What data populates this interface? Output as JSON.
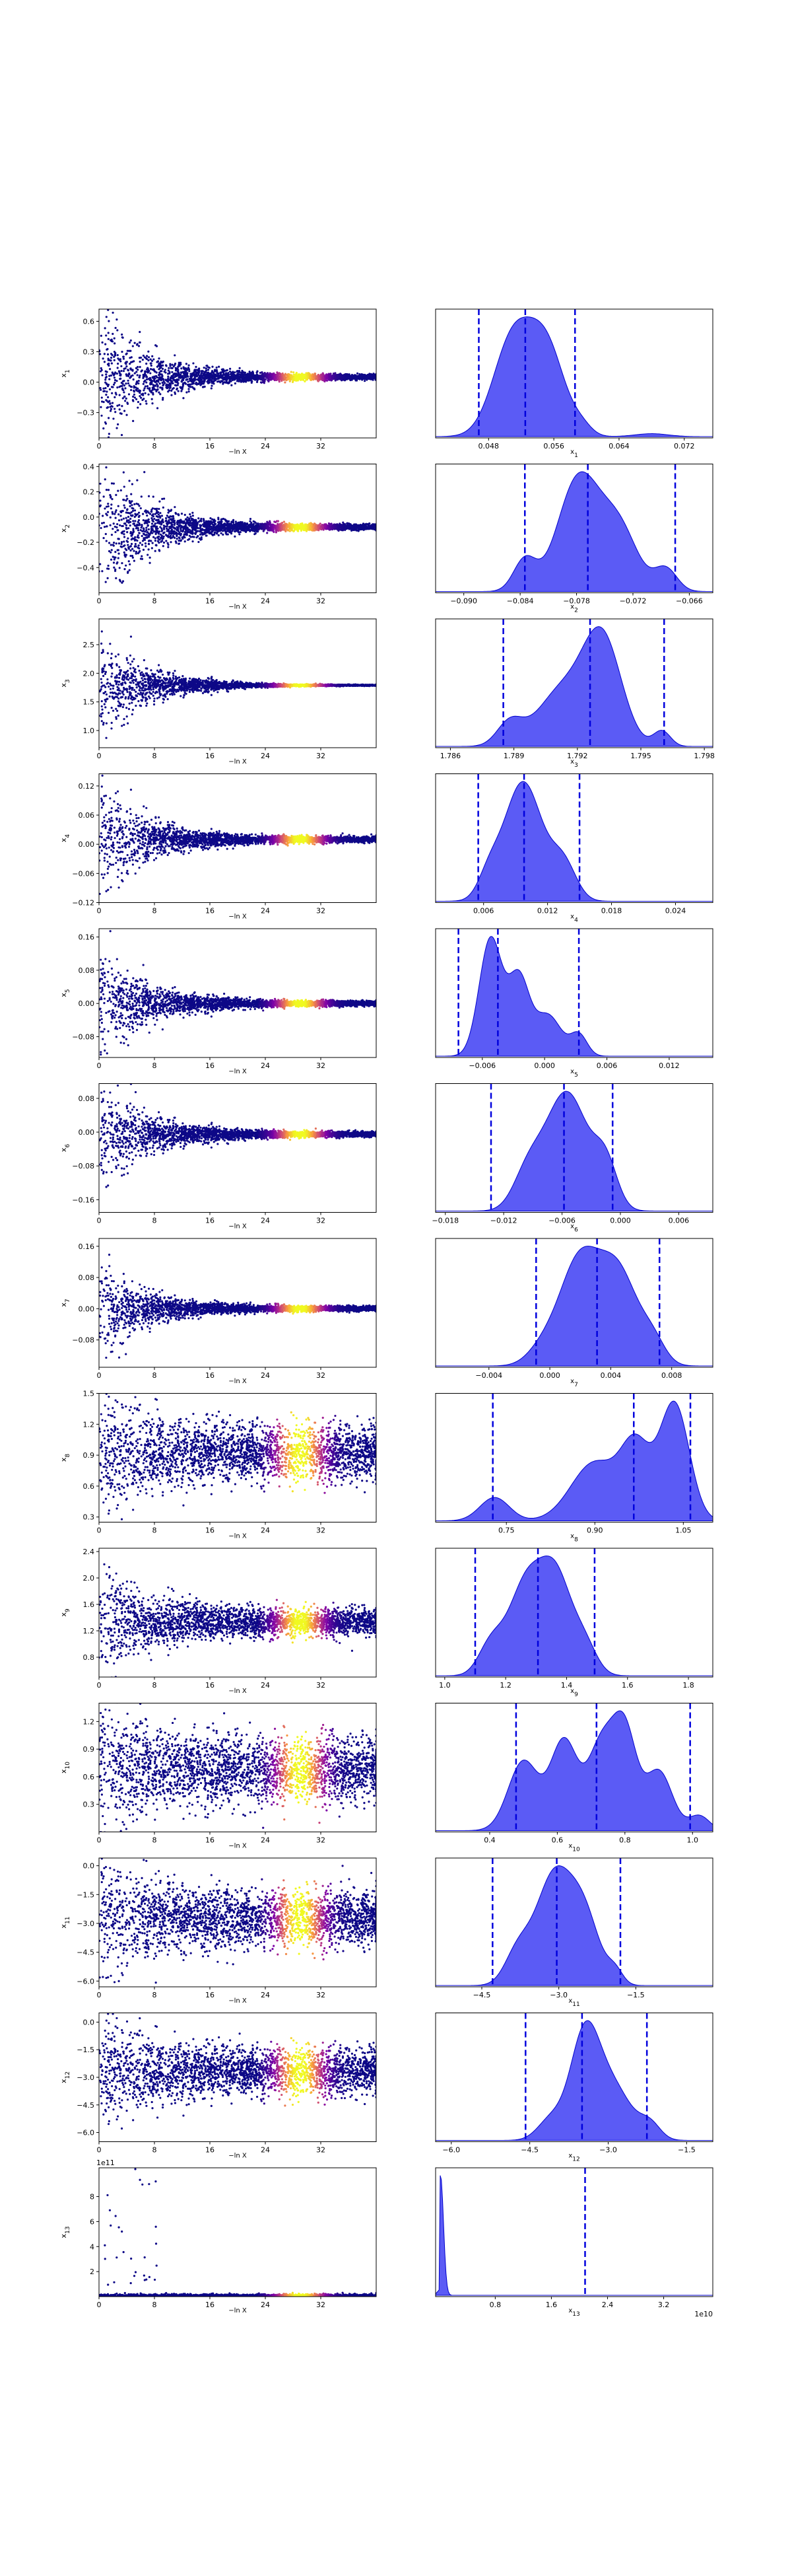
{
  "chart_data": [
    {
      "type": "scatter",
      "ylabel_html": "x<tspan baseline-shift='sub' font-size='9'>1</tspan>",
      "xlabel": "−ln X",
      "xticks": [
        "0",
        "8",
        "16",
        "24",
        "32"
      ],
      "xlim": [
        0,
        40
      ],
      "ylim": [
        -0.55,
        0.72
      ],
      "yticks": [
        -0.3,
        0.0,
        0.3,
        0.6
      ],
      "yticklabels": [
        "−0.3",
        "0.0",
        "0.3",
        "0.6"
      ],
      "center": 0.05,
      "spread0": 0.35,
      "tail": 0.012,
      "skew": 0
    },
    {
      "type": "area",
      "xlabel_html": "x<tspan baseline-shift='sub' font-size='9'>1</tspan>",
      "xlim": [
        0.0415,
        0.0755
      ],
      "xticks": [
        0.048,
        0.056,
        0.064,
        0.072
      ],
      "xticklabels": [
        "0.048",
        "0.056",
        "0.064",
        "0.072"
      ],
      "quantiles": [
        0.0468,
        0.0525,
        0.0586
      ],
      "peaks": [
        [
          0.051,
          0.0024,
          1.0
        ],
        [
          0.0552,
          0.0022,
          0.85
        ],
        [
          0.0595,
          0.0012,
          0.08
        ],
        [
          0.068,
          0.002,
          0.03
        ]
      ]
    },
    {
      "type": "scatter",
      "ylabel_html": "x<tspan baseline-shift='sub' font-size='9'>2</tspan>",
      "xlabel": "−ln X",
      "xticks": [
        "0",
        "8",
        "16",
        "24",
        "32"
      ],
      "xlim": [
        0,
        40
      ],
      "ylim": [
        -0.6,
        0.42
      ],
      "yticks": [
        -0.4,
        -0.2,
        0.0,
        0.2,
        0.4
      ],
      "yticklabels": [
        "−0.4",
        "−0.2",
        "0.0",
        "0.2",
        "0.4"
      ],
      "center": -0.08,
      "spread0": 0.3,
      "tail": 0.01,
      "skew": 0
    },
    {
      "type": "area",
      "xlabel_html": "x<tspan baseline-shift='sub' font-size='9'>2</tspan>",
      "xlim": [
        -0.093,
        -0.0635
      ],
      "xticks": [
        -0.09,
        -0.084,
        -0.078,
        -0.072,
        -0.066
      ],
      "xticklabels": [
        "−0.090",
        "−0.084",
        "−0.078",
        "−0.072",
        "−0.066"
      ],
      "quantiles": [
        -0.0835,
        -0.0768,
        -0.0675
      ],
      "peaks": [
        [
          -0.0835,
          0.0012,
          0.28
        ],
        [
          -0.0778,
          0.0022,
          1.0
        ],
        [
          -0.0735,
          0.002,
          0.55
        ],
        [
          -0.0685,
          0.0012,
          0.2
        ]
      ]
    },
    {
      "type": "scatter",
      "ylabel_html": "x<tspan baseline-shift='sub' font-size='9'>3</tspan>",
      "xlabel": "−ln X",
      "xticks": [
        "0",
        "8",
        "16",
        "24",
        "32"
      ],
      "xlim": [
        0,
        40
      ],
      "ylim": [
        0.7,
        2.95
      ],
      "yticks": [
        1.0,
        1.5,
        2.0,
        2.5
      ],
      "yticklabels": [
        "1.0",
        "1.5",
        "2.0",
        "2.5"
      ],
      "center": 1.79,
      "spread0": 0.5,
      "tail": 0.004,
      "skew": 0
    },
    {
      "type": "area",
      "xlabel_html": "x<tspan baseline-shift='sub' font-size='9'>3</tspan>",
      "xlim": [
        1.7853,
        1.7984
      ],
      "xticks": [
        1.786,
        1.789,
        1.792,
        1.795,
        1.798
      ],
      "xticklabels": [
        "1.786",
        "1.789",
        "1.792",
        "1.795",
        "1.798"
      ],
      "quantiles": [
        1.7885,
        1.7926,
        1.7961
      ],
      "peaks": [
        [
          1.7888,
          0.0006,
          0.22
        ],
        [
          1.7913,
          0.0012,
          0.55
        ],
        [
          1.7932,
          0.0009,
          1.0
        ],
        [
          1.796,
          0.0004,
          0.15
        ]
      ]
    },
    {
      "type": "scatter",
      "ylabel_html": "x<tspan baseline-shift='sub' font-size='9'>4</tspan>",
      "xlabel": "−ln X",
      "xticks": [
        "0",
        "8",
        "16",
        "24",
        "32"
      ],
      "xlim": [
        0,
        40
      ],
      "ylim": [
        -0.12,
        0.145
      ],
      "yticks": [
        -0.12,
        -0.06,
        0.0,
        0.06,
        0.12
      ],
      "yticklabels": [
        "−0.12",
        "−0.06",
        "0.00",
        "0.06",
        "0.12"
      ],
      "center": 0.01,
      "spread0": 0.055,
      "tail": 0.003,
      "skew": 0
    },
    {
      "type": "area",
      "xlabel_html": "x<tspan baseline-shift='sub' font-size='9'>4</tspan>",
      "xlim": [
        0.0015,
        0.0275
      ],
      "xticks": [
        0.006,
        0.012,
        0.018,
        0.024
      ],
      "xticklabels": [
        "0.006",
        "0.012",
        "0.018",
        "0.024"
      ],
      "quantiles": [
        0.0055,
        0.0098,
        0.015
      ],
      "peaks": [
        [
          0.0097,
          0.0018,
          1.0
        ],
        [
          0.0135,
          0.0012,
          0.3
        ],
        [
          0.0065,
          0.001,
          0.18
        ]
      ]
    },
    {
      "type": "scatter",
      "ylabel_html": "x<tspan baseline-shift='sub' font-size='9'>5</tspan>",
      "xlabel": "−ln X",
      "xticks": [
        "0",
        "8",
        "16",
        "24",
        "32"
      ],
      "xlim": [
        0,
        40
      ],
      "ylim": [
        -0.13,
        0.18
      ],
      "yticks": [
        -0.08,
        0.0,
        0.08,
        0.16
      ],
      "yticklabels": [
        "−0.08",
        "0.00",
        "0.08",
        "0.16"
      ],
      "center": 0.0,
      "spread0": 0.065,
      "tail": 0.003,
      "skew": 0
    },
    {
      "type": "area",
      "xlabel_html": "x<tspan baseline-shift='sub' font-size='9'>5</tspan>",
      "xlim": [
        -0.0105,
        0.0162
      ],
      "xticks": [
        -0.006,
        0.0,
        0.006,
        0.012
      ],
      "xticklabels": [
        "−0.006",
        "0.000",
        "0.006",
        "0.012"
      ],
      "quantiles": [
        -0.0083,
        -0.0045,
        0.0033
      ],
      "peaks": [
        [
          -0.0052,
          0.0011,
          1.0
        ],
        [
          -0.0025,
          0.001,
          0.65
        ],
        [
          0.0003,
          0.0013,
          0.35
        ],
        [
          0.0033,
          0.0008,
          0.18
        ]
      ]
    },
    {
      "type": "scatter",
      "ylabel_html": "x<tspan baseline-shift='sub' font-size='9'>6</tspan>",
      "xlabel": "−ln X",
      "xticks": [
        "0",
        "8",
        "16",
        "24",
        "32"
      ],
      "xlim": [
        0,
        40
      ],
      "ylim": [
        -0.19,
        0.115
      ],
      "yticks": [
        -0.16,
        -0.08,
        0.0,
        0.08
      ],
      "yticklabels": [
        "−0.16",
        "−0.08",
        "0.00",
        "0.08"
      ],
      "center": -0.005,
      "spread0": 0.065,
      "tail": 0.003,
      "skew": 0
    },
    {
      "type": "area",
      "xlabel_html": "x<tspan baseline-shift='sub' font-size='9'>6</tspan>",
      "xlim": [
        -0.019,
        0.0095
      ],
      "xticks": [
        -0.018,
        -0.012,
        -0.006,
        0.0,
        0.006
      ],
      "xticklabels": [
        "−0.018",
        "−0.012",
        "−0.006",
        "0.000",
        "0.006"
      ],
      "quantiles": [
        -0.0133,
        -0.0058,
        -0.0008
      ],
      "peaks": [
        [
          -0.0055,
          0.0022,
          1.0
        ],
        [
          -0.0095,
          0.0015,
          0.3
        ],
        [
          -0.0015,
          0.0012,
          0.35
        ]
      ]
    },
    {
      "type": "scatter",
      "ylabel_html": "x<tspan baseline-shift='sub' font-size='9'>7</tspan>",
      "xlabel": "−ln X",
      "xticks": [
        "0",
        "8",
        "16",
        "24",
        "32"
      ],
      "xlim": [
        0,
        40
      ],
      "ylim": [
        -0.15,
        0.18
      ],
      "yticks": [
        -0.08,
        0.0,
        0.08,
        0.16
      ],
      "yticklabels": [
        "−0.08",
        "0.00",
        "0.08",
        "0.16"
      ],
      "center": 0.0,
      "spread0": 0.06,
      "tail": 0.003,
      "skew": 0
    },
    {
      "type": "area",
      "xlabel_html": "x<tspan baseline-shift='sub' font-size='9'>7</tspan>",
      "xlim": [
        -0.0075,
        0.0107
      ],
      "xticks": [
        -0.004,
        0.0,
        0.004,
        0.008
      ],
      "xticklabels": [
        "−0.004",
        "0.000",
        "0.004",
        "0.008"
      ],
      "quantiles": [
        -0.0009,
        0.0031,
        0.0072
      ],
      "peaks": [
        [
          0.0019,
          0.0013,
          1.0
        ],
        [
          0.0045,
          0.0013,
          0.9
        ],
        [
          -0.0005,
          0.001,
          0.15
        ],
        [
          0.0068,
          0.0008,
          0.2
        ]
      ]
    },
    {
      "type": "scatter",
      "ylabel_html": "x<tspan baseline-shift='sub' font-size='9'>8</tspan>",
      "xlabel": "−ln X",
      "xticks": [
        "0",
        "8",
        "16",
        "24",
        "32"
      ],
      "xlim": [
        0,
        40
      ],
      "ylim": [
        0.25,
        1.5
      ],
      "yticks": [
        0.3,
        0.6,
        0.9,
        1.2,
        1.5
      ],
      "yticklabels": [
        "0.3",
        "0.6",
        "0.9",
        "1.2",
        "1.5"
      ],
      "center": 0.92,
      "spread0": 0.2,
      "tail": 0.13,
      "skew": 0
    },
    {
      "type": "area",
      "xlabel_html": "x<tspan baseline-shift='sub' font-size='9'>8</tspan>",
      "xlim": [
        0.63,
        1.1
      ],
      "xticks": [
        0.75,
        0.9,
        1.05
      ],
      "xticklabels": [
        "0.75",
        "0.90",
        "1.05"
      ],
      "quantiles": [
        0.727,
        0.966,
        1.062
      ],
      "peaks": [
        [
          0.73,
          0.025,
          0.2
        ],
        [
          0.9,
          0.04,
          0.5
        ],
        [
          0.97,
          0.025,
          0.6
        ],
        [
          1.035,
          0.025,
          1.0
        ]
      ]
    },
    {
      "type": "scatter",
      "ylabel_html": "x<tspan baseline-shift='sub' font-size='9'>9</tspan>",
      "xlabel": "−ln X",
      "xticks": [
        "0",
        "8",
        "16",
        "24",
        "32"
      ],
      "xlim": [
        0,
        40
      ],
      "ylim": [
        0.5,
        2.45
      ],
      "yticks": [
        0.8,
        1.2,
        1.6,
        2.0,
        2.4
      ],
      "yticklabels": [
        "0.8",
        "1.2",
        "1.6",
        "2.0",
        "2.4"
      ],
      "center": 1.33,
      "spread0": 0.35,
      "tail": 0.1,
      "skew": 0
    },
    {
      "type": "area",
      "xlabel_html": "x<tspan baseline-shift='sub' font-size='9'>9</tspan>",
      "xlim": [
        0.97,
        1.88
      ],
      "xticks": [
        1.0,
        1.2,
        1.4,
        1.6,
        1.8
      ],
      "xticklabels": [
        "1.0",
        "1.2",
        "1.4",
        "1.6",
        "1.8"
      ],
      "quantiles": [
        1.1,
        1.306,
        1.492
      ],
      "peaks": [
        [
          1.27,
          0.06,
          1.0
        ],
        [
          1.37,
          0.05,
          0.9
        ],
        [
          1.15,
          0.04,
          0.3
        ],
        [
          1.46,
          0.04,
          0.3
        ]
      ]
    },
    {
      "type": "scatter",
      "ylabel_html": "x<tspan baseline-shift='sub' font-size='9'>10</tspan>",
      "xlabel": "−ln X",
      "xticks": [
        "0",
        "8",
        "16",
        "24",
        "32"
      ],
      "xlim": [
        0,
        40
      ],
      "ylim": [
        0.0,
        1.4
      ],
      "yticks": [
        0.3,
        0.6,
        0.9,
        1.2
      ],
      "yticklabels": [
        "0.3",
        "0.6",
        "0.9",
        "1.2"
      ],
      "center": 0.68,
      "spread0": 0.22,
      "tail": 0.17,
      "skew": 0
    },
    {
      "type": "area",
      "xlabel_html": "x<tspan baseline-shift='sub' font-size='9'>10</tspan>",
      "xlim": [
        0.24,
        1.06
      ],
      "xticks": [
        0.4,
        0.6,
        0.8,
        1.0
      ],
      "xticklabels": [
        "0.4",
        "0.6",
        "0.8",
        "1.0"
      ],
      "quantiles": [
        0.478,
        0.716,
        0.993
      ],
      "peaks": [
        [
          0.5,
          0.045,
          0.7
        ],
        [
          0.62,
          0.04,
          0.9
        ],
        [
          0.73,
          0.04,
          0.85
        ],
        [
          0.8,
          0.035,
          0.95
        ],
        [
          0.9,
          0.04,
          0.6
        ],
        [
          1.02,
          0.03,
          0.15
        ]
      ]
    },
    {
      "type": "scatter",
      "ylabel_html": "x<tspan baseline-shift='sub' font-size='9'>11</tspan>",
      "xlabel": "−ln X",
      "xticks": [
        "0",
        "8",
        "16",
        "24",
        "32"
      ],
      "xlim": [
        0,
        40
      ],
      "ylim": [
        -6.3,
        0.4
      ],
      "yticks": [
        -6.0,
        -4.5,
        -3.0,
        -1.5,
        0.0
      ],
      "yticklabels": [
        "−6.0",
        "−4.5",
        "−3.0",
        "−1.5",
        "0.0"
      ],
      "center": -2.7,
      "spread0": 0.9,
      "tail": 0.7,
      "skew": 0
    },
    {
      "type": "area",
      "xlabel_html": "x<tspan baseline-shift='sub' font-size='9'>11</tspan>",
      "xlim": [
        -5.4,
        0.0
      ],
      "xticks": [
        -4.5,
        -3.0,
        -1.5
      ],
      "xticklabels": [
        "−4.5",
        "−3.0",
        "−1.5"
      ],
      "quantiles": [
        -4.29,
        -3.04,
        -1.8
      ],
      "peaks": [
        [
          -3.1,
          0.35,
          1.0
        ],
        [
          -3.8,
          0.25,
          0.3
        ],
        [
          -2.5,
          0.3,
          0.6
        ],
        [
          -1.9,
          0.15,
          0.12
        ]
      ]
    },
    {
      "type": "scatter",
      "ylabel_html": "x<tspan baseline-shift='sub' font-size='9'>12</tspan>",
      "xlabel": "−ln X",
      "xticks": [
        "0",
        "8",
        "16",
        "24",
        "32"
      ],
      "xlim": [
        0,
        40
      ],
      "ylim": [
        -6.5,
        0.5
      ],
      "yticks": [
        -6.0,
        -4.5,
        -3.0,
        -1.5,
        0.0
      ],
      "yticklabels": [
        "−6.0",
        "−4.5",
        "−3.0",
        "−1.5",
        "0.0"
      ],
      "center": -2.7,
      "spread0": 1.0,
      "tail": 0.6,
      "skew": 0
    },
    {
      "type": "area",
      "xlabel_html": "x<tspan baseline-shift='sub' font-size='9'>12</tspan>",
      "xlim": [
        -6.3,
        -1.0
      ],
      "xticks": [
        -6.0,
        -4.5,
        -3.0,
        -1.5
      ],
      "xticklabels": [
        "−6.0",
        "−4.5",
        "−3.0",
        "−1.5"
      ],
      "quantiles": [
        -4.58,
        -3.5,
        -2.26
      ],
      "peaks": [
        [
          -3.45,
          0.28,
          1.0
        ],
        [
          -2.9,
          0.35,
          0.5
        ],
        [
          -4.1,
          0.25,
          0.2
        ],
        [
          -2.2,
          0.2,
          0.15
        ]
      ]
    },
    {
      "type": "scatter13",
      "ylabel_html": "x<tspan baseline-shift='sub' font-size='9'>13</tspan>",
      "xlabel": "−ln X",
      "xticks": [
        "0",
        "8",
        "16",
        "24",
        "32"
      ],
      "xlim": [
        0,
        40
      ],
      "ylim": [
        0,
        10.3
      ],
      "yticks": [
        2,
        4,
        6,
        8
      ],
      "yticklabels": [
        "2",
        "4",
        "6",
        "8"
      ],
      "offset": "1e11"
    },
    {
      "type": "area13",
      "xlabel_html": "x<tspan baseline-shift='sub' font-size='9'>13</tspan>",
      "xlim": [
        -0.05,
        3.9
      ],
      "xticks": [
        0.8,
        1.6,
        2.4,
        3.2
      ],
      "xticklabels": [
        "0.8",
        "1.6",
        "2.4",
        "3.2"
      ],
      "quantiles": [
        2.08
      ],
      "offset": "1e10"
    }
  ],
  "colors": {
    "fill": "#5b5bf5",
    "edge": "#0000cc",
    "line": "#0000dd",
    "scatter_low": "#0d0887",
    "scatter_high": "#f0f921"
  }
}
